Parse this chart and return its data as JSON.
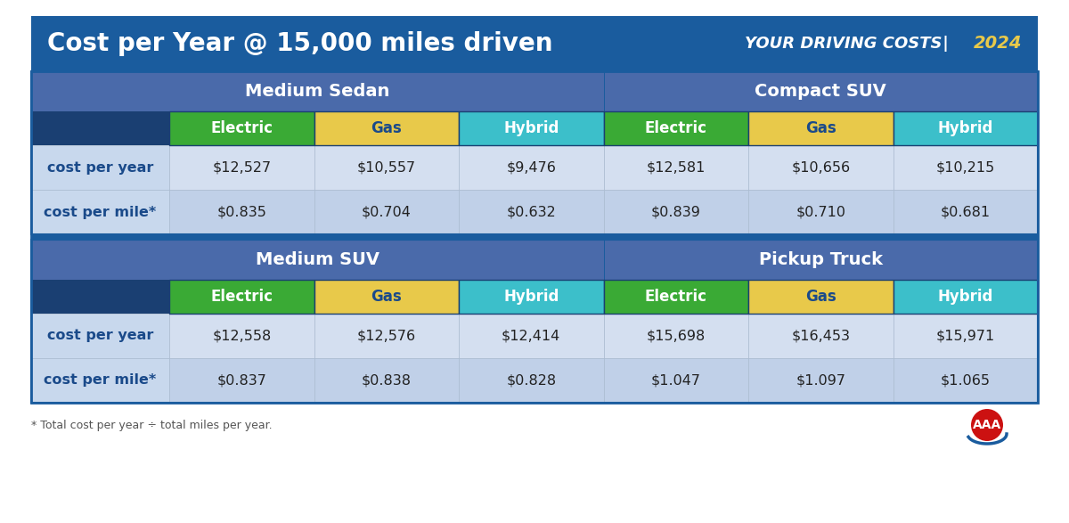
{
  "title_left": "Cost per Year @ 15,000 miles driven",
  "title_right_text": "YOUR DRIVING COSTS",
  "title_right_year": "2024",
  "footnote": "* Total cost per year ÷ total miles per year.",
  "colors": {
    "header_bg": "#1a5c9e",
    "section_bg": "#4a6aaa",
    "col_header_bg": "#1a3f72",
    "electric": "#3aaa35",
    "gas": "#e8c94a",
    "hybrid": "#3cbfca",
    "row1_bg": "#d4dff0",
    "row2_bg": "#c0d0e8",
    "label_bg": "#c8d8ed",
    "white": "#ffffff",
    "dark_blue": "#1a4a8a",
    "black": "#222222",
    "gas_text": "#1a5c9e",
    "border": "#1a5c9e",
    "yellow": "#e8c94a",
    "sep_line": "#1a5c9e"
  },
  "sections_top": [
    {
      "name": "Medium Sedan",
      "cost_per_year": [
        "$12,527",
        "$10,557",
        "$9,476"
      ],
      "cost_per_mile": [
        "$0.835",
        "$0.704",
        "$0.632"
      ]
    },
    {
      "name": "Compact SUV",
      "cost_per_year": [
        "$12,581",
        "$10,656",
        "$10,215"
      ],
      "cost_per_mile": [
        "$0.839",
        "$0.710",
        "$0.681"
      ]
    }
  ],
  "sections_bot": [
    {
      "name": "Medium SUV",
      "cost_per_year": [
        "$12,558",
        "$12,576",
        "$12,414"
      ],
      "cost_per_mile": [
        "$0.837",
        "$0.838",
        "$0.828"
      ]
    },
    {
      "name": "Pickup Truck",
      "cost_per_year": [
        "$15,698",
        "$16,453",
        "$15,971"
      ],
      "cost_per_mile": [
        "$1.047",
        "$1.097",
        "$1.065"
      ]
    }
  ],
  "col_labels": [
    "Electric",
    "Gas",
    "Hybrid"
  ],
  "col_colors": [
    "#3aaa35",
    "#e8c94a",
    "#3cbfca"
  ],
  "col_text_colors": [
    "#ffffff",
    "#1a4a8a",
    "#ffffff"
  ],
  "row_labels": [
    "cost per year",
    "cost per mile*"
  ]
}
